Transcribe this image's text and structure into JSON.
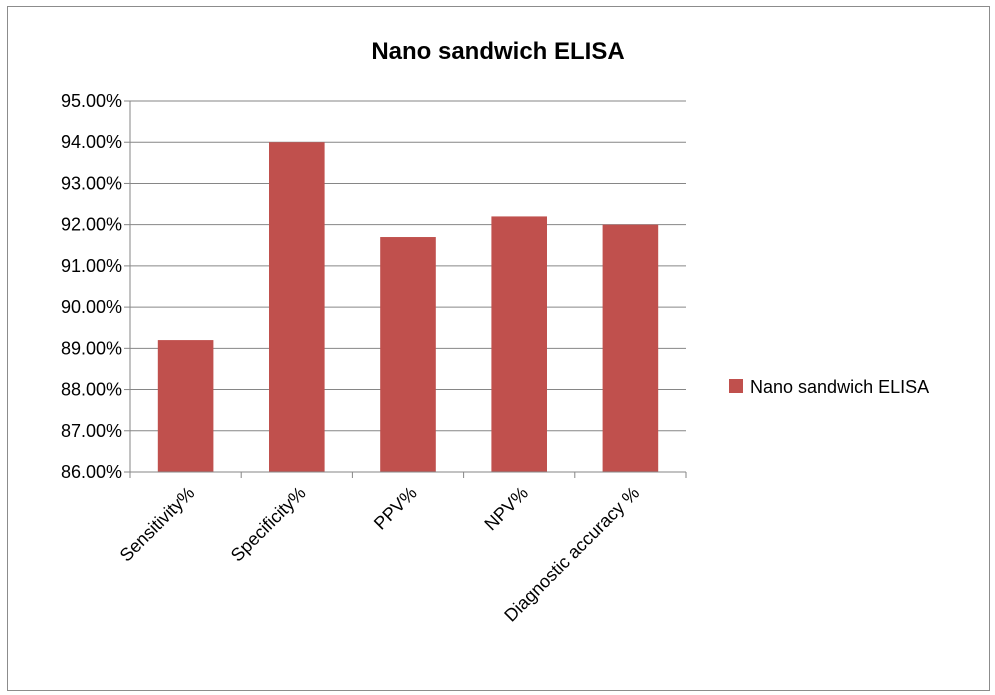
{
  "chart_data": {
    "type": "bar",
    "title": "Nano sandwich ELISA",
    "xlabel": "",
    "ylabel": "",
    "categories": [
      "Sensitivity%",
      "Specificity%",
      "PPV%",
      "NPV%",
      "Diagnostic accuracy %"
    ],
    "series": [
      {
        "name": "Nano sandwich ELISA",
        "values": [
          89.2,
          94.0,
          91.7,
          92.2,
          92.0
        ],
        "color": "#c0504d"
      }
    ],
    "ylim": [
      86,
      95
    ],
    "yticks": [
      86,
      87,
      88,
      89,
      90,
      91,
      92,
      93,
      94,
      95
    ],
    "ytick_labels": [
      "86.00%",
      "87.00%",
      "88.00%",
      "89.00%",
      "90.00%",
      "91.00%",
      "92.00%",
      "93.00%",
      "94.00%",
      "95.00%"
    ],
    "grid": true,
    "legend_position": "right"
  }
}
